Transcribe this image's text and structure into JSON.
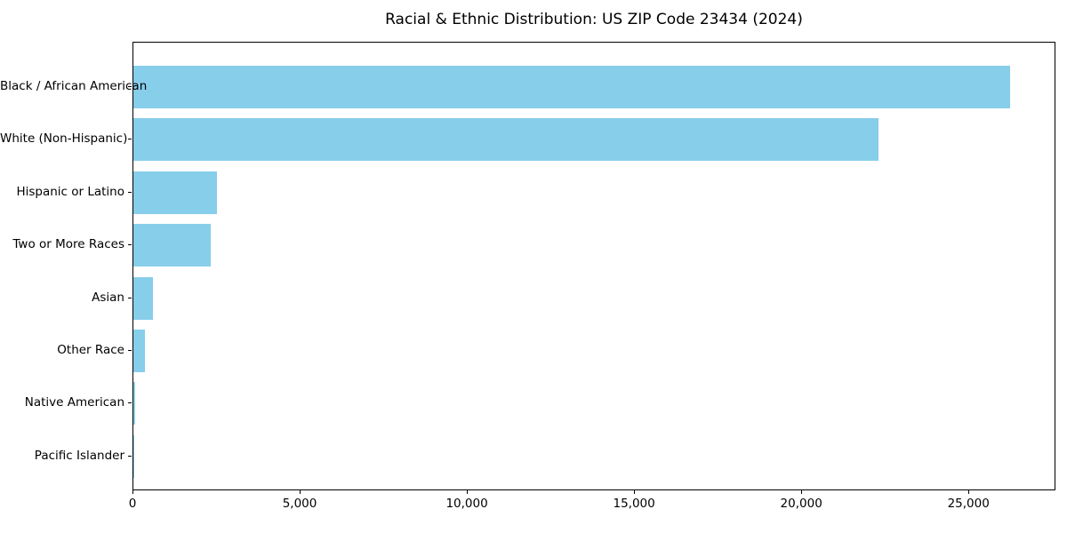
{
  "chart_data": {
    "type": "bar",
    "orientation": "horizontal",
    "title": "Racial & Ethnic Distribution: US ZIP Code 23434 (2024)",
    "categories": [
      "Black / African American",
      "White (Non-Hispanic)",
      "Hispanic or Latino",
      "Two or More Races",
      "Asian",
      "Other Race",
      "Native American",
      "Pacific Islander"
    ],
    "values": [
      26220,
      22270,
      2510,
      2300,
      575,
      340,
      45,
      10
    ],
    "xlabel": "",
    "ylabel": "",
    "xlim": [
      0,
      27600
    ],
    "xticks": [
      0,
      5000,
      10000,
      15000,
      20000,
      25000
    ],
    "xtick_labels": [
      "0",
      "5,000",
      "10,000",
      "15,000",
      "20,000",
      "25,000"
    ],
    "bar_color": "#87CEEB",
    "background_color": "#ffffff",
    "text_color": "#000000",
    "grid": false,
    "legend_position": "none"
  }
}
